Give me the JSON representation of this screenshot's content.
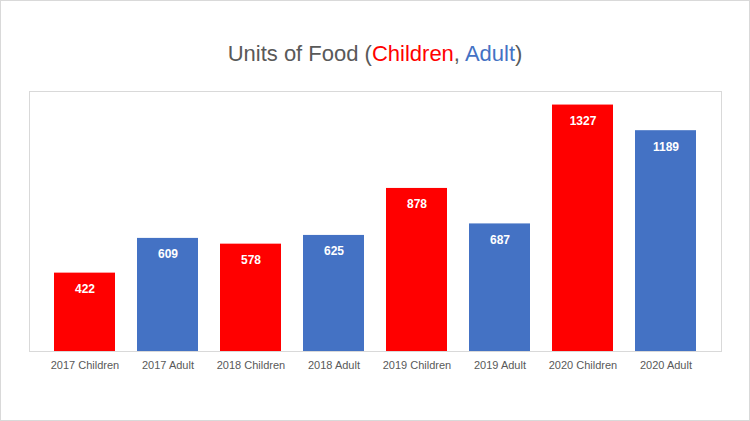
{
  "chart_data": {
    "type": "bar",
    "title": "Units of Food (Children, Adult)",
    "categories": [
      "2017 Children",
      "2017 Adult",
      "2018 Children",
      "2018 Adult",
      "2019 Children",
      "2019 Adult",
      "2020 Children",
      "2020 Adult"
    ],
    "values": [
      422,
      609,
      578,
      625,
      878,
      687,
      1327,
      1189
    ],
    "colors": [
      "#ff0000",
      "#4472c4",
      "#ff0000",
      "#4472c4",
      "#ff0000",
      "#4472c4",
      "#ff0000",
      "#4472c4"
    ],
    "ylim": [
      0,
      1400
    ],
    "tick_labels": "x",
    "grid": false,
    "data_labels": true
  }
}
